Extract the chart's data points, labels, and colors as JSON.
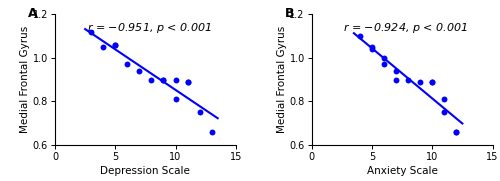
{
  "panel_A": {
    "label": "A",
    "x": [
      3,
      4,
      5,
      5,
      6,
      7,
      8,
      9,
      9,
      10,
      10,
      11,
      11,
      12,
      13
    ],
    "y": [
      1.12,
      1.05,
      1.06,
      1.06,
      0.97,
      0.94,
      0.9,
      0.9,
      0.9,
      0.9,
      0.81,
      0.89,
      0.89,
      0.75,
      0.66
    ],
    "xlabel": "Depression Scale",
    "ylabel": "Medial Frontal Gyrus",
    "annotation": "r = -0.951, p < 0.001",
    "xlim": [
      0,
      15
    ],
    "ylim": [
      0.6,
      1.2
    ],
    "xticks": [
      0,
      5,
      10,
      15
    ],
    "yticks": [
      0.6,
      0.8,
      1.0,
      1.2
    ],
    "line_xmin": 2.5,
    "line_xmax": 13.5
  },
  "panel_B": {
    "label": "B",
    "x": [
      4,
      5,
      5,
      6,
      6,
      7,
      7,
      8,
      9,
      10,
      10,
      11,
      11,
      12,
      12
    ],
    "y": [
      1.1,
      1.05,
      1.04,
      0.97,
      1.0,
      0.94,
      0.9,
      0.9,
      0.89,
      0.89,
      0.89,
      0.81,
      0.75,
      0.66,
      0.66
    ],
    "xlabel": "Anxiety Scale",
    "ylabel": "Medial Frontal Gyrus",
    "annotation": "r = -0.924, p < 0.001",
    "xlim": [
      0,
      15
    ],
    "ylim": [
      0.6,
      1.2
    ],
    "xticks": [
      0,
      5,
      10,
      15
    ],
    "yticks": [
      0.6,
      0.8,
      1.0,
      1.2
    ],
    "line_xmin": 3.5,
    "line_xmax": 12.5
  },
  "dot_color": "#0000FF",
  "line_color": "#0000FF",
  "dot_size": 18,
  "line_width": 1.5,
  "font_size_label": 7.5,
  "font_size_tick": 7,
  "font_size_annot": 8,
  "font_size_panel": 9
}
